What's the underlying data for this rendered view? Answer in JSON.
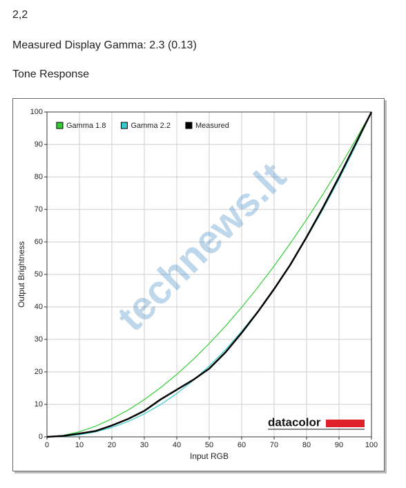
{
  "heading": "2,2",
  "gamma_text": "Measured Display Gamma: 2.3 (0.13)",
  "section_title": "Tone Response",
  "chart_data": {
    "type": "line",
    "x_label": "Input RGB",
    "y_label": "Output Brightness",
    "watermark": "technews.lt",
    "logo": "datacolor",
    "x": [
      0,
      5,
      10,
      15,
      20,
      25,
      30,
      35,
      40,
      45,
      50,
      55,
      60,
      65,
      70,
      75,
      80,
      85,
      90,
      95,
      100
    ],
    "series": [
      {
        "name": "Gamma 1.8",
        "color": "#33cc33",
        "values": [
          0,
          0.46,
          1.58,
          3.29,
          5.54,
          8.25,
          11.47,
          15.14,
          19.22,
          23.76,
          28.72,
          34.08,
          39.87,
          46.05,
          52.6,
          59.6,
          66.9,
          74.6,
          82.7,
          91.2,
          100
        ]
      },
      {
        "name": "Gamma 2.2",
        "color": "#33cccc",
        "values": [
          0,
          0.14,
          0.63,
          1.54,
          2.9,
          4.73,
          7.07,
          9.93,
          13.34,
          17.3,
          21.8,
          26.8,
          32.5,
          38.7,
          45.6,
          53.1,
          61.2,
          69.9,
          79.3,
          89.3,
          100
        ]
      },
      {
        "name": "Measured",
        "color": "#000000",
        "values": [
          0,
          0.3,
          1,
          1.8,
          3.5,
          5.5,
          8,
          11.5,
          14.5,
          17.5,
          21,
          26,
          32,
          38.5,
          45.5,
          53,
          61.5,
          70.5,
          80,
          90,
          100
        ]
      }
    ],
    "xlim": [
      0,
      100
    ],
    "ylim": [
      0,
      100
    ],
    "xticks": [
      0,
      10,
      20,
      30,
      40,
      50,
      60,
      70,
      80,
      90,
      100
    ],
    "yticks": [
      0,
      10,
      20,
      30,
      40,
      50,
      60,
      70,
      80,
      90,
      100
    ],
    "grid": true,
    "legend": "top-left"
  }
}
